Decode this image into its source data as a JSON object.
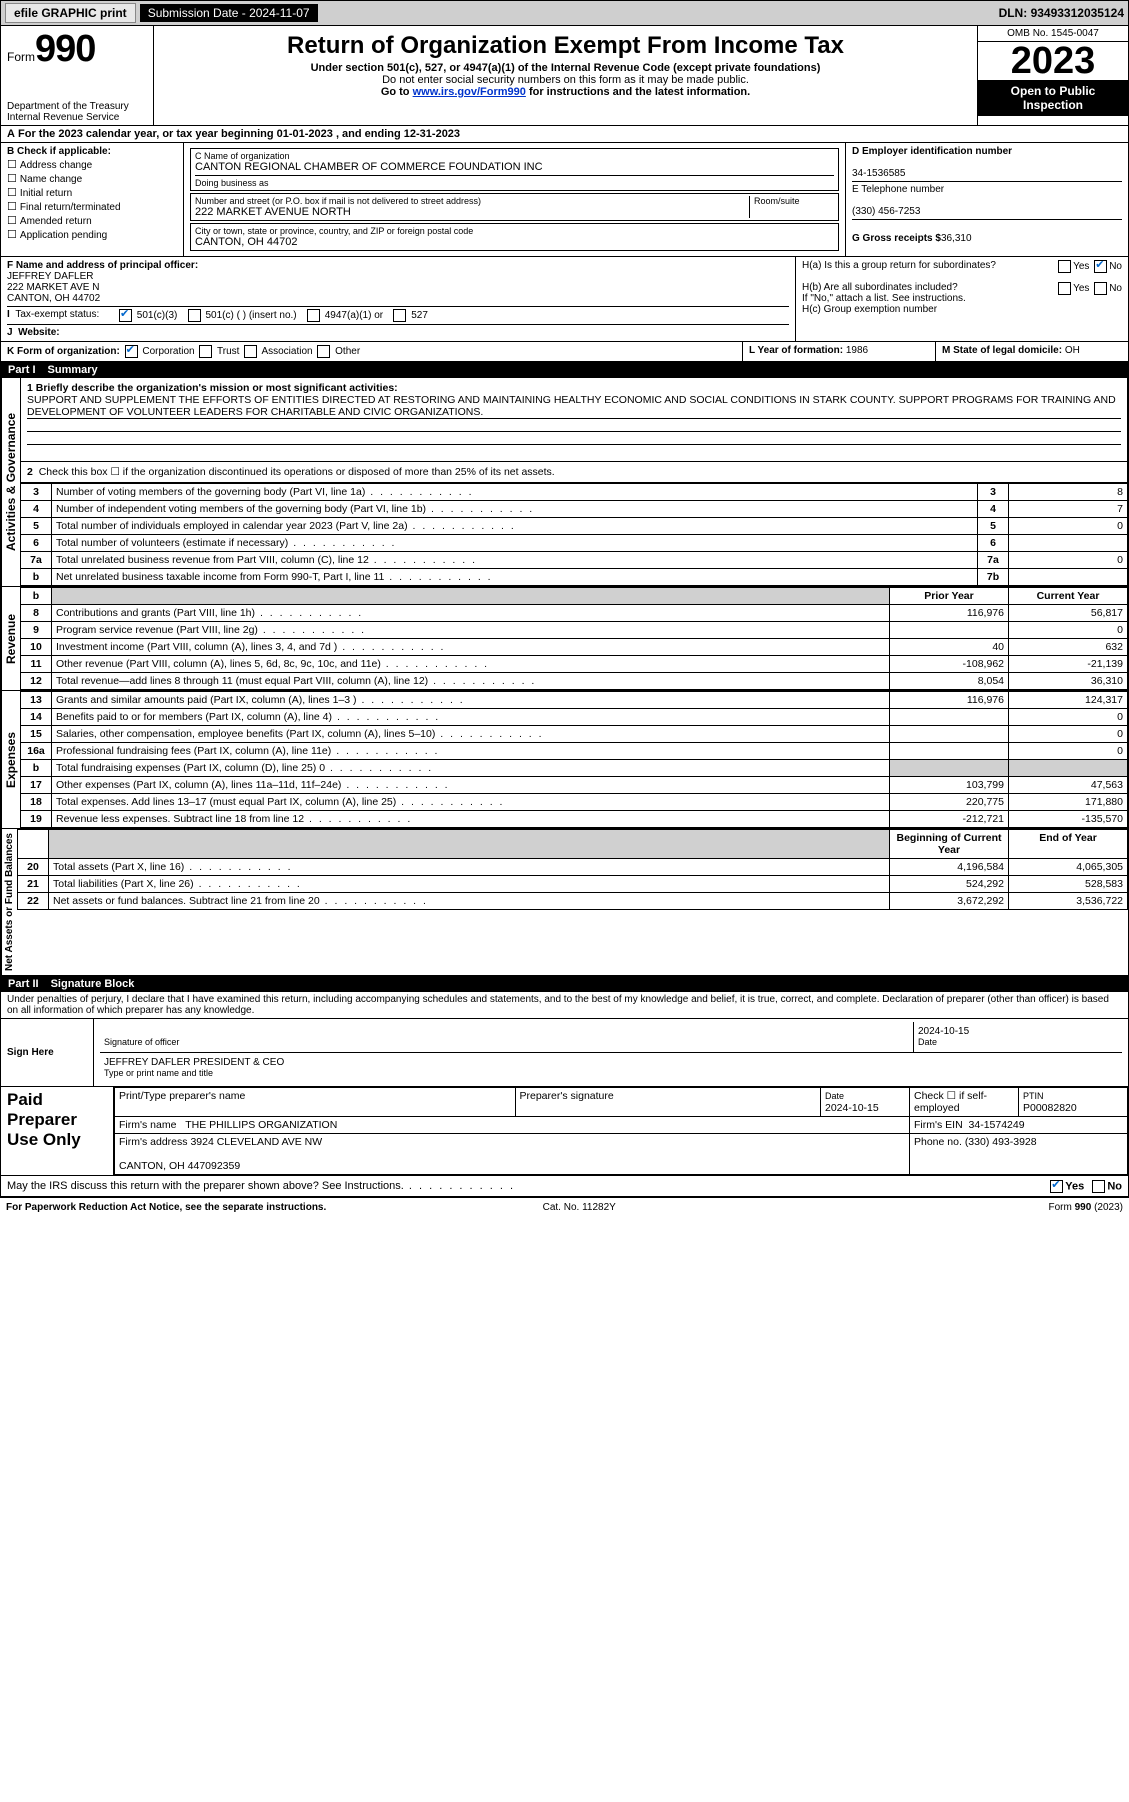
{
  "topbar": {
    "efile": "efile GRAPHIC print",
    "subdate_label": "Submission Date - ",
    "subdate": "2024-11-07",
    "dln_label": "DLN: ",
    "dln": "93493312035124"
  },
  "header": {
    "form_word": "Form",
    "form_num": "990",
    "dept": "Department of the Treasury",
    "irs": "Internal Revenue Service",
    "title": "Return of Organization Exempt From Income Tax",
    "sub1": "Under section 501(c), 527, or 4947(a)(1) of the Internal Revenue Code (except private foundations)",
    "sub2": "Do not enter social security numbers on this form as it may be made public.",
    "sub3": "Go to www.irs.gov/Form990 for instructions and the latest information.",
    "omb": "OMB No. 1545-0047",
    "year": "2023",
    "open": "Open to Public Inspection"
  },
  "A": {
    "text": "For the 2023 calendar year, or tax year beginning 01-01-2023   , and ending 12-31-2023"
  },
  "B": {
    "label": "B Check if applicable:",
    "items": [
      "Address change",
      "Name change",
      "Initial return",
      "Final return/terminated",
      "Amended return",
      "Application pending"
    ]
  },
  "C": {
    "name_label": "C Name of organization",
    "name": "CANTON REGIONAL CHAMBER OF COMMERCE FOUNDATION INC",
    "dba_label": "Doing business as",
    "dba": "",
    "addr_label": "Number and street (or P.O. box if mail is not delivered to street address)",
    "room_label": "Room/suite",
    "addr": "222 MARKET AVENUE NORTH",
    "city_label": "City or town, state or province, country, and ZIP or foreign postal code",
    "city": "CANTON, OH  44702"
  },
  "D": {
    "label": "D Employer identification number",
    "val": "34-1536585"
  },
  "E": {
    "label": "E Telephone number",
    "val": "(330) 456-7253"
  },
  "G": {
    "label": "G Gross receipts $",
    "val": "36,310"
  },
  "F": {
    "label": "F  Name and address of principal officer:",
    "name": "JEFFREY DAFLER",
    "addr1": "222 MARKET AVE N",
    "addr2": "CANTON, OH  44702"
  },
  "H": {
    "a": "H(a)  Is this a group return for subordinates?",
    "b": "H(b)  Are all subordinates included?",
    "bnote": "If \"No,\" attach a list. See instructions.",
    "c": "H(c)  Group exemption number"
  },
  "I": {
    "label": "Tax-exempt status:",
    "opts": [
      "501(c)(3)",
      "501(c) (  ) (insert no.)",
      "4947(a)(1) or",
      "527"
    ]
  },
  "J": {
    "label": "Website:"
  },
  "K": {
    "label": "K Form of organization:",
    "opts": [
      "Corporation",
      "Trust",
      "Association",
      "Other"
    ]
  },
  "L": {
    "label": "L Year of formation: ",
    "val": "1986"
  },
  "M": {
    "label": "M State of legal domicile: ",
    "val": "OH"
  },
  "part1": {
    "label": "Part I",
    "title": "Summary"
  },
  "mission": {
    "q": "1  Briefly describe the organization's mission or most significant activities:",
    "text": "SUPPORT AND SUPPLEMENT THE EFFORTS OF ENTITIES DIRECTED AT RESTORING AND MAINTAINING HEALTHY ECONOMIC AND SOCIAL CONDITIONS IN STARK COUNTY. SUPPORT PROGRAMS FOR TRAINING AND DEVELOPMENT OF VOLUNTEER LEADERS FOR CHARITABLE AND CIVIC ORGANIZATIONS."
  },
  "gov": {
    "l2": "Check this box ☐ if the organization discontinued its operations or disposed of more than 25% of its net assets.",
    "rows": [
      {
        "n": "3",
        "d": "Number of voting members of the governing body (Part VI, line 1a)",
        "b": "3",
        "v": "8"
      },
      {
        "n": "4",
        "d": "Number of independent voting members of the governing body (Part VI, line 1b)",
        "b": "4",
        "v": "7"
      },
      {
        "n": "5",
        "d": "Total number of individuals employed in calendar year 2023 (Part V, line 2a)",
        "b": "5",
        "v": "0"
      },
      {
        "n": "6",
        "d": "Total number of volunteers (estimate if necessary)",
        "b": "6",
        "v": ""
      },
      {
        "n": "7a",
        "d": "Total unrelated business revenue from Part VIII, column (C), line 12",
        "b": "7a",
        "v": "0"
      },
      {
        "n": "b",
        "d": "Net unrelated business taxable income from Form 990-T, Part I, line 11",
        "b": "7b",
        "v": ""
      }
    ]
  },
  "rev": {
    "hdr_prior": "Prior Year",
    "hdr_cur": "Current Year",
    "rows": [
      {
        "n": "8",
        "d": "Contributions and grants (Part VIII, line 1h)",
        "p": "116,976",
        "c": "56,817"
      },
      {
        "n": "9",
        "d": "Program service revenue (Part VIII, line 2g)",
        "p": "",
        "c": "0"
      },
      {
        "n": "10",
        "d": "Investment income (Part VIII, column (A), lines 3, 4, and 7d )",
        "p": "40",
        "c": "632"
      },
      {
        "n": "11",
        "d": "Other revenue (Part VIII, column (A), lines 5, 6d, 8c, 9c, 10c, and 11e)",
        "p": "-108,962",
        "c": "-21,139"
      },
      {
        "n": "12",
        "d": "Total revenue—add lines 8 through 11 (must equal Part VIII, column (A), line 12)",
        "p": "8,054",
        "c": "36,310"
      }
    ]
  },
  "exp": {
    "rows": [
      {
        "n": "13",
        "d": "Grants and similar amounts paid (Part IX, column (A), lines 1–3 )",
        "p": "116,976",
        "c": "124,317"
      },
      {
        "n": "14",
        "d": "Benefits paid to or for members (Part IX, column (A), line 4)",
        "p": "",
        "c": "0"
      },
      {
        "n": "15",
        "d": "Salaries, other compensation, employee benefits (Part IX, column (A), lines 5–10)",
        "p": "",
        "c": "0"
      },
      {
        "n": "16a",
        "d": "Professional fundraising fees (Part IX, column (A), line 11e)",
        "p": "",
        "c": "0"
      },
      {
        "n": "b",
        "d": "Total fundraising expenses (Part IX, column (D), line 25) 0",
        "p": "shade",
        "c": "shade"
      },
      {
        "n": "17",
        "d": "Other expenses (Part IX, column (A), lines 11a–11d, 11f–24e)",
        "p": "103,799",
        "c": "47,563"
      },
      {
        "n": "18",
        "d": "Total expenses. Add lines 13–17 (must equal Part IX, column (A), line 25)",
        "p": "220,775",
        "c": "171,880"
      },
      {
        "n": "19",
        "d": "Revenue less expenses. Subtract line 18 from line 12",
        "p": "-212,721",
        "c": "-135,570"
      }
    ]
  },
  "net": {
    "hdr_beg": "Beginning of Current Year",
    "hdr_end": "End of Year",
    "rows": [
      {
        "n": "20",
        "d": "Total assets (Part X, line 16)",
        "p": "4,196,584",
        "c": "4,065,305"
      },
      {
        "n": "21",
        "d": "Total liabilities (Part X, line 26)",
        "p": "524,292",
        "c": "528,583"
      },
      {
        "n": "22",
        "d": "Net assets or fund balances. Subtract line 21 from line 20",
        "p": "3,672,292",
        "c": "3,536,722"
      }
    ]
  },
  "part2": {
    "label": "Part II",
    "title": "Signature Block",
    "decl": "Under penalties of perjury, I declare that I have examined this return, including accompanying schedules and statements, and to the best of my knowledge and belief, it is true, correct, and complete. Declaration of preparer (other than officer) is based on all information of which preparer has any knowledge."
  },
  "sign": {
    "label": "Sign Here",
    "sig_label": "Signature of officer",
    "date_label": "Date",
    "date": "2024-10-15",
    "name": "JEFFREY DAFLER  PRESIDENT & CEO",
    "name_label": "Type or print name and title"
  },
  "paid": {
    "label": "Paid Preparer Use Only",
    "c1": "Print/Type preparer's name",
    "c2": "Preparer's signature",
    "c3": "Date",
    "c3v": "2024-10-15",
    "c4": "Check ☐ if self-employed",
    "c5": "PTIN",
    "c5v": "P00082820",
    "firm_label": "Firm's name",
    "firm": "THE PHILLIPS ORGANIZATION",
    "ein_label": "Firm's EIN",
    "ein": "34-1574249",
    "addr_label": "Firm's address",
    "addr1": "3924 CLEVELAND AVE NW",
    "addr2": "CANTON, OH  447092359",
    "phone_label": "Phone no.",
    "phone": "(330) 493-3928"
  },
  "bottom": {
    "q": "May the IRS discuss this return with the preparer shown above? See Instructions.",
    "yes": "Yes",
    "no": "No",
    "pra": "For Paperwork Reduction Act Notice, see the separate instructions.",
    "cat": "Cat. No. 11282Y",
    "form": "Form 990 (2023)"
  },
  "vlabels": {
    "gov": "Activities & Governance",
    "rev": "Revenue",
    "exp": "Expenses",
    "net": "Net Assets or Fund Balances"
  }
}
